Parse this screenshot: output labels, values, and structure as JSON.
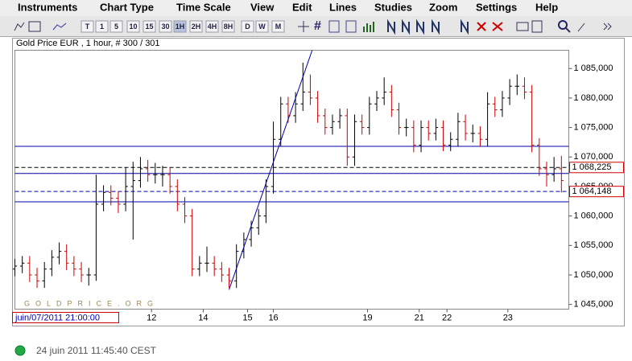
{
  "ui": {
    "menu": [
      "Instruments",
      "Chart Type",
      "Time Scale",
      "View",
      "Edit",
      "Lines",
      "Studies",
      "Zoom",
      "Settings",
      "Help"
    ],
    "toolbar_buttons": [
      "T",
      "1",
      "5",
      "10",
      "15",
      "30",
      "1H",
      "2H",
      "4H",
      "8H",
      "D",
      "W",
      "M"
    ],
    "cursor_date": "juin/07/2011 21:00:00",
    "status": "24 juin 2011 11:45:40 CEST"
  },
  "chart_data": {
    "type": "ohlc",
    "title": "Gold Price EUR , 1 hour, # 300 / 301",
    "watermark": "GOLDPRICE.ORG",
    "up_color": "#000000",
    "down_color": "#cc0000",
    "xlim": [
      0,
      300
    ],
    "ylim": [
      1044.2,
      1088.1
    ],
    "xticks": [
      {
        "value": 74,
        "label": "12"
      },
      {
        "value": 102,
        "label": "14"
      },
      {
        "value": 126,
        "label": "15"
      },
      {
        "value": 140,
        "label": "16"
      },
      {
        "value": 191,
        "label": "19"
      },
      {
        "value": 219,
        "label": "21"
      },
      {
        "value": 234,
        "label": "22"
      },
      {
        "value": 267,
        "label": "23"
      }
    ],
    "yticks": [
      {
        "value": 1045,
        "label": "1 045,000"
      },
      {
        "value": 1050,
        "label": "1 050,000"
      },
      {
        "value": 1055,
        "label": "1 055,000"
      },
      {
        "value": 1060,
        "label": "1 060,000"
      },
      {
        "value": 1065,
        "label": "1 065,000"
      },
      {
        "value": 1070,
        "label": "1 070,000"
      },
      {
        "value": 1075,
        "label": "1 075,000"
      },
      {
        "value": 1080,
        "label": "1 080,000"
      },
      {
        "value": 1085,
        "label": "1 085,000"
      }
    ],
    "hlines": [
      {
        "value": 1071.8,
        "color": "#0000aa",
        "dashed": false
      },
      {
        "value": 1067.2,
        "color": "#0000aa",
        "dashed": false
      },
      {
        "value": 1062.4,
        "color": "#0000aa",
        "dashed": false
      },
      {
        "value": 1068.225,
        "label": "1 068,225",
        "color": "#000000",
        "dashed": true
      },
      {
        "value": 1064.148,
        "label": "1 064,148",
        "color": "#0000aa",
        "dashed": true
      }
    ],
    "trendline": {
      "x": [
        116,
        161
      ],
      "y": [
        1047.5,
        1088.1
      ],
      "color": "#0000aa"
    },
    "x": [
      0,
      4,
      8,
      12,
      16,
      20,
      24,
      28,
      32,
      36,
      40,
      44,
      48,
      52,
      56,
      60,
      64,
      68,
      72,
      76,
      80,
      84,
      88,
      92,
      96,
      100,
      104,
      108,
      112,
      116,
      120,
      124,
      128,
      132,
      136,
      140,
      144,
      148,
      152,
      156,
      160,
      164,
      168,
      172,
      176,
      180,
      184,
      188,
      192,
      196,
      200,
      204,
      208,
      212,
      216,
      220,
      224,
      228,
      232,
      236,
      240,
      244,
      248,
      252,
      256,
      260,
      264,
      268,
      272,
      276,
      280,
      284,
      288,
      292,
      296
    ],
    "bars": [
      [
        1051,
        1052.7,
        1049.8,
        1051.5
      ],
      [
        1051.5,
        1053.2,
        1050.3,
        1052
      ],
      [
        1052,
        1053.2,
        1048.8,
        1050
      ],
      [
        1050,
        1051.2,
        1047.8,
        1049
      ],
      [
        1049,
        1052.2,
        1047.8,
        1051
      ],
      [
        1051,
        1054.2,
        1049.8,
        1053
      ],
      [
        1053,
        1055.5,
        1051.8,
        1054
      ],
      [
        1054,
        1055.2,
        1050.8,
        1052
      ],
      [
        1052,
        1053.2,
        1049.8,
        1051
      ],
      [
        1051,
        1052.2,
        1048.8,
        1050
      ],
      [
        1050,
        1051.2,
        1048.2,
        1050
      ],
      [
        1050,
        1067,
        1049,
        1062
      ],
      [
        1062,
        1065.2,
        1060.8,
        1064
      ],
      [
        1064,
        1065.2,
        1061.8,
        1063
      ],
      [
        1063,
        1064.2,
        1060.5,
        1062
      ],
      [
        1062,
        1068.2,
        1060.8,
        1065
      ],
      [
        1065,
        1069.2,
        1056,
        1066
      ],
      [
        1066,
        1070,
        1064.8,
        1068
      ],
      [
        1068,
        1069.5,
        1065.8,
        1067
      ],
      [
        1067,
        1069,
        1065.5,
        1067
      ],
      [
        1067,
        1068.5,
        1065,
        1067
      ],
      [
        1067,
        1068.2,
        1063.8,
        1065
      ],
      [
        1065,
        1066.2,
        1060.8,
        1062
      ],
      [
        1062,
        1063.2,
        1058.8,
        1060
      ],
      [
        1060,
        1061.2,
        1049.8,
        1051
      ],
      [
        1051,
        1053.2,
        1049.8,
        1052
      ],
      [
        1052,
        1054.8,
        1050.5,
        1052
      ],
      [
        1052,
        1053.2,
        1049.8,
        1051
      ],
      [
        1051,
        1052.2,
        1048.8,
        1050
      ],
      [
        1050,
        1051.2,
        1047.8,
        1049
      ],
      [
        1049,
        1055.2,
        1047.8,
        1054
      ],
      [
        1054,
        1057.2,
        1052.8,
        1056
      ],
      [
        1056,
        1059.2,
        1054.8,
        1058
      ],
      [
        1058,
        1061.2,
        1056.8,
        1060
      ],
      [
        1060,
        1066.2,
        1058.8,
        1065
      ],
      [
        1065,
        1076,
        1063.8,
        1073
      ],
      [
        1073,
        1080.2,
        1071.8,
        1079
      ],
      [
        1079,
        1080.2,
        1075.8,
        1077
      ],
      [
        1077,
        1081,
        1075.8,
        1079
      ],
      [
        1079,
        1086,
        1077.8,
        1081
      ],
      [
        1081,
        1084,
        1078.8,
        1080
      ],
      [
        1080,
        1081.2,
        1075.8,
        1077
      ],
      [
        1077,
        1078.2,
        1073.8,
        1075
      ],
      [
        1075,
        1077.2,
        1073.8,
        1076
      ],
      [
        1076,
        1078.2,
        1074.8,
        1077
      ],
      [
        1077,
        1078.2,
        1068.5,
        1070
      ],
      [
        1070,
        1077.2,
        1068.5,
        1076
      ],
      [
        1076,
        1077.2,
        1073.8,
        1075
      ],
      [
        1075,
        1080.2,
        1073.8,
        1079
      ],
      [
        1079,
        1081.2,
        1077.8,
        1080
      ],
      [
        1080,
        1083.5,
        1078.8,
        1081
      ],
      [
        1081,
        1082.2,
        1076.8,
        1078
      ],
      [
        1078,
        1079.2,
        1073.8,
        1075
      ],
      [
        1075,
        1076.5,
        1073.5,
        1075
      ],
      [
        1075,
        1076.2,
        1070.8,
        1072
      ],
      [
        1072,
        1076.2,
        1070.8,
        1075
      ],
      [
        1075,
        1076.2,
        1072.8,
        1074
      ],
      [
        1074,
        1076.5,
        1072.8,
        1075
      ],
      [
        1075,
        1076.2,
        1071,
        1072
      ],
      [
        1072,
        1074.2,
        1071,
        1073
      ],
      [
        1073,
        1077.5,
        1071.8,
        1076
      ],
      [
        1076,
        1077.2,
        1072.8,
        1074
      ],
      [
        1074,
        1075.5,
        1072.5,
        1074
      ],
      [
        1074,
        1075.2,
        1071.8,
        1073
      ],
      [
        1073,
        1081,
        1071.8,
        1079
      ],
      [
        1079,
        1080.2,
        1076.8,
        1078
      ],
      [
        1078,
        1081.2,
        1076.8,
        1080
      ],
      [
        1080,
        1083.2,
        1078.8,
        1082
      ],
      [
        1082,
        1084,
        1080.5,
        1082
      ],
      [
        1082,
        1083.5,
        1079.8,
        1081
      ],
      [
        1081,
        1082.2,
        1070.8,
        1072
      ],
      [
        1072,
        1073.2,
        1066.8,
        1068
      ],
      [
        1068,
        1069.2,
        1065,
        1067
      ],
      [
        1067,
        1070,
        1065.8,
        1068
      ],
      [
        1068,
        1070.2,
        1064,
        1066
      ]
    ]
  }
}
